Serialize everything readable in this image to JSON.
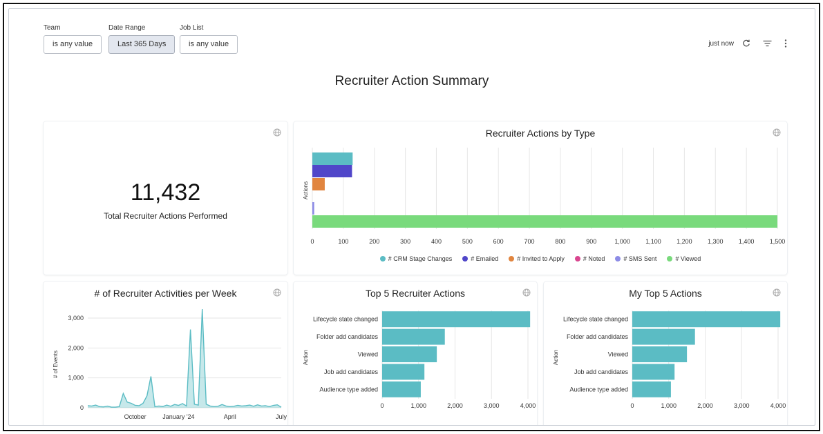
{
  "filters": [
    {
      "label": "Team",
      "value": "is any value",
      "active": false
    },
    {
      "label": "Date Range",
      "value": "Last 365 Days",
      "active": true
    },
    {
      "label": "Job List",
      "value": "is any value",
      "active": false
    }
  ],
  "header": {
    "refresh_status": "just now",
    "title": "Recruiter Action Summary"
  },
  "kpi": {
    "value": "11,432",
    "label": "Total Recruiter Actions Performed"
  },
  "colors": {
    "teal": "#5bbcc4",
    "indigo": "#5046c9",
    "orange": "#e1853f",
    "pink": "#d9468f",
    "lavender": "#8d8ce6",
    "green": "#79da7c",
    "grid": "#e6e6e6"
  },
  "actions_by_type": {
    "title": "Recruiter Actions by Type",
    "chart_data": {
      "type": "bar",
      "orientation": "horizontal",
      "ylabel": "Actions",
      "xlim": [
        0,
        1500
      ],
      "x_ticks": [
        "0",
        "100",
        "200",
        "300",
        "400",
        "500",
        "600",
        "700",
        "800",
        "900",
        "1,000",
        "1,100",
        "1,200",
        "1,300",
        "1,400",
        "1,500"
      ],
      "series": [
        {
          "name": "# CRM Stage Changes",
          "value": 130,
          "color": "#5bbcc4"
        },
        {
          "name": "# Emailed",
          "value": 128,
          "color": "#5046c9"
        },
        {
          "name": "# Invited to Apply",
          "value": 40,
          "color": "#e1853f"
        },
        {
          "name": "# Noted",
          "value": 0,
          "color": "#d9468f"
        },
        {
          "name": "# SMS Sent",
          "value": 6,
          "color": "#8d8ce6"
        },
        {
          "name": "# Viewed",
          "value": 1500,
          "color": "#79da7c"
        }
      ]
    }
  },
  "activities_per_week": {
    "title": "# of Recruiter Activities per Week",
    "chart_data": {
      "type": "area",
      "ylabel": "# of Events",
      "ylim": [
        0,
        3300
      ],
      "y_ticks": [
        {
          "v": 0,
          "label": "0"
        },
        {
          "v": 1000,
          "label": "1,000"
        },
        {
          "v": 2000,
          "label": "2,000"
        },
        {
          "v": 3000,
          "label": "3,000"
        }
      ],
      "x_ticks": [
        {
          "i": 12,
          "label": "October"
        },
        {
          "i": 23,
          "label": "January '24"
        },
        {
          "i": 36,
          "label": "April"
        },
        {
          "i": 49,
          "label": "July"
        }
      ],
      "values": [
        70,
        60,
        90,
        40,
        30,
        55,
        20,
        20,
        40,
        480,
        190,
        150,
        80,
        70,
        150,
        400,
        1050,
        40,
        60,
        45,
        90,
        50,
        110,
        80,
        140,
        60,
        2620,
        120,
        90,
        3300,
        120,
        60,
        40,
        50,
        110,
        60,
        40,
        50,
        80,
        60,
        70,
        90,
        50,
        100,
        60,
        70,
        40,
        80,
        100,
        20
      ]
    }
  },
  "top5_recruiter": {
    "title": "Top 5 Recruiter Actions",
    "chart_data": {
      "type": "bar",
      "orientation": "horizontal",
      "ylabel": "Action",
      "xlim": [
        0,
        4000
      ],
      "x_ticks": [
        "0",
        "1,000",
        "2,000",
        "3,000",
        "4,000"
      ],
      "categories": [
        "Lifecycle state changed",
        "Folder add candidates",
        "Viewed",
        "Job add candidates",
        "Audience type added"
      ],
      "values": [
        4060,
        1720,
        1500,
        1160,
        1060
      ]
    }
  },
  "my_top5": {
    "title": "My Top 5 Actions",
    "chart_data": {
      "type": "bar",
      "orientation": "horizontal",
      "ylabel": "Action",
      "xlim": [
        0,
        4000
      ],
      "x_ticks": [
        "0",
        "1,000",
        "2,000",
        "3,000",
        "4,000"
      ],
      "categories": [
        "Lifecycle state changed",
        "Folder add candidates",
        "Viewed",
        "Job add candidates",
        "Audience type added"
      ],
      "values": [
        4060,
        1720,
        1500,
        1160,
        1060
      ]
    }
  }
}
